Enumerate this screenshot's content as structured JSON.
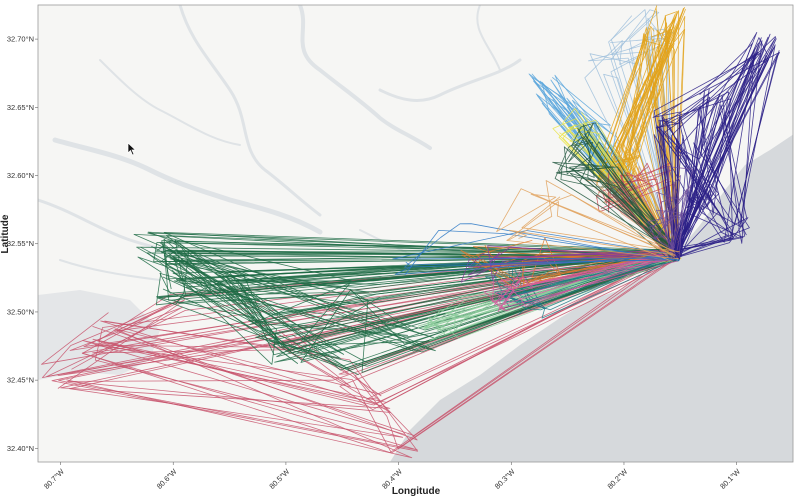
{
  "chart_data": {
    "type": "line",
    "xlabel": "Longitude",
    "ylabel": "Latitude",
    "xlim": [
      -80.72,
      -80.05
    ],
    "ylim": [
      32.39,
      32.725
    ],
    "x_ticks": [
      {
        "value": -80.7,
        "label": "80.7°W"
      },
      {
        "value": -80.6,
        "label": "80.6°W"
      },
      {
        "value": -80.5,
        "label": "80.5°W"
      },
      {
        "value": -80.4,
        "label": "80.4°W"
      },
      {
        "value": -80.3,
        "label": "80.3°W"
      },
      {
        "value": -80.2,
        "label": "80.2°W"
      },
      {
        "value": -80.1,
        "label": "80.1°W"
      }
    ],
    "y_ticks": [
      {
        "value": 32.4,
        "label": "32.40°N"
      },
      {
        "value": 32.45,
        "label": "32.45°N"
      },
      {
        "value": 32.5,
        "label": "32.50°N"
      },
      {
        "value": 32.55,
        "label": "32.55°N"
      },
      {
        "value": 32.6,
        "label": "32.60°N"
      },
      {
        "value": 32.65,
        "label": "32.65°N"
      },
      {
        "value": 32.7,
        "label": "32.70°N"
      }
    ],
    "grid": false,
    "legend": "none",
    "hub": {
      "lon": -80.155,
      "lat": 32.542
    },
    "series": [
      {
        "color": "#c8556d",
        "anchors": [
          [
            -80.705,
            32.452
          ],
          [
            -80.395,
            32.402
          ],
          [
            -80.68,
            32.47
          ],
          [
            -80.42,
            32.43
          ],
          [
            -80.6,
            32.505
          ],
          [
            -80.5,
            32.48
          ],
          [
            -80.66,
            32.49
          ],
          [
            -80.45,
            32.455
          ]
        ],
        "count": 26
      },
      {
        "color": "#1e6b45",
        "anchors": [
          [
            -80.6,
            32.545
          ],
          [
            -80.61,
            32.535
          ],
          [
            -80.5,
            32.47
          ],
          [
            -80.44,
            32.46
          ],
          [
            -80.55,
            32.52
          ],
          [
            -80.62,
            32.55
          ],
          [
            -80.43,
            32.515
          ],
          [
            -80.6,
            32.515
          ],
          [
            -80.38,
            32.48
          ],
          [
            -80.52,
            32.49
          ]
        ],
        "count": 55
      },
      {
        "color": "#8ccc9b",
        "anchors": [
          [
            -80.36,
            32.49
          ],
          [
            -80.35,
            32.5
          ],
          [
            -80.37,
            32.48
          ],
          [
            -80.33,
            32.505
          ]
        ],
        "count": 12
      },
      {
        "color": "#1d7a86",
        "anchors": [
          [
            -80.32,
            32.52
          ],
          [
            -80.3,
            32.51
          ],
          [
            -80.28,
            32.505
          ],
          [
            -80.31,
            32.53
          ]
        ],
        "count": 10
      },
      {
        "color": "#e07a2c",
        "anchors": [
          [
            -80.28,
            32.545
          ],
          [
            -80.3,
            32.525
          ],
          [
            -80.27,
            32.53
          ],
          [
            -80.33,
            32.54
          ]
        ],
        "count": 12
      },
      {
        "color": "#d7589f",
        "anchors": [
          [
            -80.295,
            32.52
          ],
          [
            -80.3,
            32.51
          ],
          [
            -80.31,
            32.515
          ]
        ],
        "count": 8
      },
      {
        "color": "#8a3aa0",
        "anchors": [
          [
            -80.315,
            32.543
          ],
          [
            -80.33,
            32.53
          ]
        ],
        "count": 5
      },
      {
        "color": "#5aa6dc",
        "anchors": [
          [
            -80.27,
            32.667
          ],
          [
            -80.21,
            32.605
          ],
          [
            -80.26,
            32.65
          ],
          [
            -80.22,
            32.63
          ]
        ],
        "count": 20
      },
      {
        "color": "#9fc0dc",
        "anchors": [
          [
            -80.18,
            32.715
          ],
          [
            -80.2,
            32.69
          ],
          [
            -80.22,
            32.68
          ],
          [
            -80.17,
            32.7
          ]
        ],
        "count": 14
      },
      {
        "color": "#e2a21a",
        "anchors": [
          [
            -80.16,
            32.715
          ],
          [
            -80.2,
            32.62
          ],
          [
            -80.17,
            32.7
          ],
          [
            -80.18,
            32.66
          ],
          [
            -80.21,
            32.6
          ]
        ],
        "count": 34
      },
      {
        "color": "#e9e442",
        "anchors": [
          [
            -80.24,
            32.64
          ],
          [
            -80.23,
            32.625
          ],
          [
            -80.25,
            32.63
          ]
        ],
        "count": 10
      },
      {
        "color": "#d4a373",
        "anchors": [
          [
            -80.2,
            32.6
          ],
          [
            -80.19,
            32.58
          ],
          [
            -80.22,
            32.59
          ]
        ],
        "count": 10
      },
      {
        "color": "#c74a5a",
        "anchors": [
          [
            -80.21,
            32.58
          ],
          [
            -80.2,
            32.595
          ],
          [
            -80.17,
            32.6
          ]
        ],
        "count": 16
      },
      {
        "color": "#23583f",
        "anchors": [
          [
            -80.23,
            32.63
          ],
          [
            -80.24,
            32.615
          ],
          [
            -80.22,
            32.6
          ],
          [
            -80.25,
            32.6
          ]
        ],
        "count": 16
      },
      {
        "color": "#2a1f86",
        "anchors": [
          [
            -80.075,
            32.695
          ],
          [
            -80.12,
            32.655
          ],
          [
            -80.145,
            32.62
          ],
          [
            -80.13,
            32.58
          ],
          [
            -80.1,
            32.56
          ],
          [
            -80.16,
            32.64
          ]
        ],
        "count": 42
      },
      {
        "color": "#6b4c9a",
        "anchors": [
          [
            -80.16,
            32.58
          ],
          [
            -80.17,
            32.56
          ],
          [
            -80.15,
            32.6
          ]
        ],
        "count": 8
      },
      {
        "color": "#2b78c4",
        "anchors": [
          [
            -80.4,
            32.53
          ],
          [
            -80.35,
            32.56
          ],
          [
            -80.3,
            32.55
          ]
        ],
        "count": 4
      },
      {
        "color": "#e0a15c",
        "anchors": [
          [
            -80.25,
            32.58
          ],
          [
            -80.3,
            32.56
          ],
          [
            -80.28,
            32.59
          ]
        ],
        "count": 6
      }
    ]
  }
}
